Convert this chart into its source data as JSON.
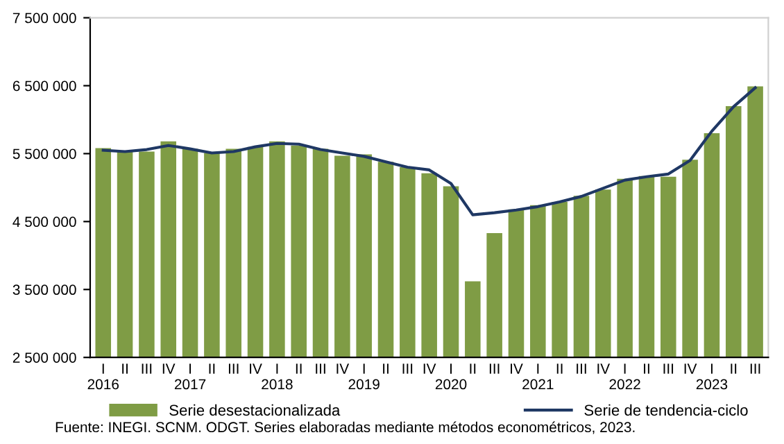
{
  "chart_data": {
    "type": "bar",
    "categories": [
      "I\n2016",
      "II",
      "III",
      "IV",
      "I\n2017",
      "II",
      "III",
      "IV",
      "I\n2018",
      "II",
      "III",
      "IV",
      "I\n2019",
      "II",
      "III",
      "IV",
      "I\n2020",
      "II",
      "III",
      "IV",
      "I\n2021",
      "II",
      "III",
      "IV",
      "I\n2022",
      "II",
      "III",
      "IV",
      "I\n2023",
      "II",
      "III"
    ],
    "series": [
      {
        "name": "Serie desestacionalizada",
        "color": "#7f9c45",
        "values": [
          5580000,
          5540000,
          5530000,
          5680000,
          5570000,
          5510000,
          5570000,
          5600000,
          5680000,
          5620000,
          5570000,
          5470000,
          5490000,
          5380000,
          5300000,
          5210000,
          5020000,
          3620000,
          4330000,
          4680000,
          4740000,
          4790000,
          4880000,
          4970000,
          5130000,
          5170000,
          5160000,
          5410000,
          5800000,
          6200000,
          6490000
        ]
      },
      {
        "name": "Serie de tendencia-ciclo",
        "type": "line",
        "color": "#1f3864",
        "values": [
          5550000,
          5530000,
          5560000,
          5620000,
          5570000,
          5510000,
          5530000,
          5600000,
          5650000,
          5640000,
          5560000,
          5510000,
          5460000,
          5380000,
          5300000,
          5260000,
          5060000,
          4600000,
          4630000,
          4670000,
          4720000,
          4790000,
          4870000,
          4990000,
          5110000,
          5160000,
          5200000,
          5400000,
          5830000,
          6190000,
          6470000
        ]
      }
    ],
    "ylim": [
      2500000,
      7500000
    ],
    "yticks": [
      {
        "value": 2500000,
        "label": "2 500 000"
      },
      {
        "value": 3500000,
        "label": "3 500 000"
      },
      {
        "value": 4500000,
        "label": "4 500 000"
      },
      {
        "value": 5500000,
        "label": "5 500 000"
      },
      {
        "value": 6500000,
        "label": "6 500 000"
      },
      {
        "value": 7500000,
        "label": "7 500 000"
      }
    ],
    "grid": false,
    "legend": "bottom",
    "marker": "none",
    "line_style": "solid",
    "annotations": [
      "Fuente: INEGI. SCNM. ODGT. Series elaboradas mediante métodos econométricos, 2023."
    ]
  }
}
